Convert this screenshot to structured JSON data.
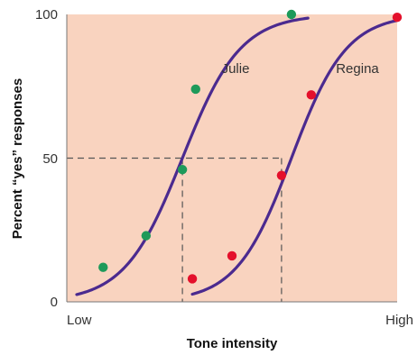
{
  "chart_data": {
    "type": "scatter",
    "xlabel": "Tone intensity",
    "ylabel": "Percent “yes” responses",
    "x_tick_labels": [
      "Low",
      "High"
    ],
    "xlim": [
      0,
      100
    ],
    "ylim": [
      0,
      100
    ],
    "y_ticks": [
      "0",
      "50",
      "100"
    ],
    "grid": false,
    "background": "#f9d3bf",
    "curve_color": "#4b2a8f",
    "guide_color": "#555555",
    "reference_level": 50,
    "thresholds": [
      {
        "series": "Julie",
        "x": 35
      },
      {
        "series": "Regina",
        "x": 65
      }
    ],
    "series": [
      {
        "name": "Julie",
        "color": "#1e9a5a",
        "points": [
          [
            11,
            12
          ],
          [
            24,
            23
          ],
          [
            35,
            46
          ],
          [
            39,
            74
          ],
          [
            68,
            100
          ]
        ],
        "curve": {
          "midpoint": 35,
          "slope": 0.114
        }
      },
      {
        "name": "Regina",
        "color": "#e4102b",
        "points": [
          [
            38,
            8
          ],
          [
            50,
            16
          ],
          [
            65,
            44
          ],
          [
            74,
            72
          ],
          [
            100,
            99
          ]
        ],
        "curve": {
          "midpoint": 68,
          "slope": 0.12,
          "x_start": 38,
          "x_end": 100
        }
      }
    ]
  }
}
